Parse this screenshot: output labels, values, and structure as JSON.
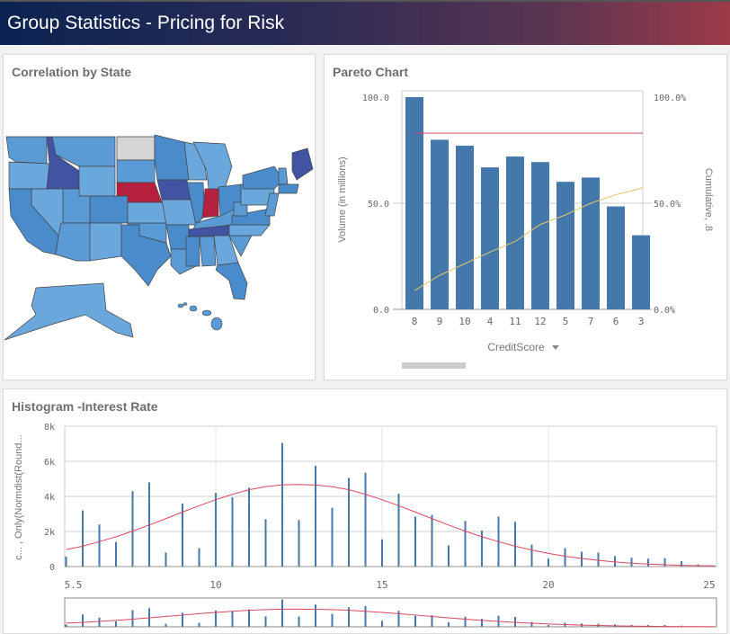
{
  "header": {
    "title": "Group Statistics - Pricing for Risk"
  },
  "map": {
    "title": "Correlation by State",
    "colors": {
      "default": "#5b9bd5",
      "light": "#6aa7dc",
      "mid": "#4a8ccb",
      "dark": "#4353a3",
      "red": "#b5203f",
      "nodata": "#d5d5d5"
    },
    "highlighted": {
      "dark": [
        "ID",
        "IA",
        "TN",
        "ME"
      ],
      "red": [
        "NE",
        "IN"
      ],
      "nodata": [
        "ND"
      ]
    }
  },
  "pareto": {
    "title": "Pareto Chart",
    "left_ticks": [
      "100.0",
      "50.0",
      "0.0"
    ],
    "right_ticks": [
      "100.0%",
      "50.0%",
      "0.0%"
    ],
    "ylabel": "Volume (in millions)",
    "y2label": "Cumulative, .8",
    "xlabel": "CreditScore",
    "dropdown_icon": "triangle-down"
  },
  "histogram": {
    "title": "Histogram -Interest Rate",
    "ylabel": "c... , Only(Normdist(Round...",
    "y_ticks": [
      "8k",
      "6k",
      "4k",
      "2k",
      "0"
    ],
    "x_ticks": [
      "5.5",
      "10",
      "15",
      "20",
      "25"
    ]
  },
  "chart_data": [
    {
      "type": "bar",
      "categories": [
        "8",
        "9",
        "10",
        "4",
        "11",
        "12",
        "5",
        "7",
        "6",
        "3"
      ],
      "values": [
        100,
        79.9,
        77.1,
        66.9,
        72.0,
        69.4,
        60.1,
        62.1,
        48.5,
        34.9
      ],
      "cumulative_pct": [
        8.8,
        16,
        21.5,
        27,
        32,
        40,
        44.5,
        50,
        54,
        57
      ],
      "reference_line_pct": 83,
      "ylim": [
        0,
        100
      ],
      "y2lim": [
        0,
        100
      ],
      "bar_color": "#4477aa",
      "line_color": "#e5c76b",
      "reference_color": "#d9475f"
    },
    {
      "type": "bar",
      "x": [
        5.5,
        6,
        6.5,
        7,
        7.5,
        8,
        8.5,
        9,
        9.5,
        10,
        10.5,
        11,
        11.5,
        12,
        12.5,
        13,
        13.5,
        14,
        14.5,
        15,
        15.5,
        16,
        16.5,
        17,
        17.5,
        18,
        18.5,
        19,
        19.5,
        20,
        20.5,
        21,
        21.5,
        22,
        22.5,
        23,
        23.5,
        24,
        24.5,
        25
      ],
      "values": [
        570,
        3200,
        2400,
        1400,
        4300,
        4800,
        800,
        3600,
        1050,
        4200,
        3950,
        4500,
        2700,
        7050,
        2650,
        5750,
        3350,
        5050,
        5350,
        1550,
        4150,
        2850,
        2950,
        1200,
        2600,
        2050,
        2850,
        2550,
        1250,
        450,
        1050,
        850,
        800,
        600,
        500,
        450,
        480,
        300,
        120,
        50
      ],
      "curve": [
        970,
        1160,
        1420,
        1700,
        2020,
        2370,
        2730,
        3110,
        3470,
        3810,
        4120,
        4380,
        4560,
        4660,
        4680,
        4650,
        4560,
        4380,
        4120,
        3810,
        3470,
        3110,
        2730,
        2370,
        2020,
        1700,
        1420,
        1160,
        940,
        750,
        590,
        460,
        350,
        260,
        190,
        140,
        100,
        70,
        50,
        40
      ],
      "xlim": [
        5.5,
        25
      ],
      "ylim": [
        0,
        8000
      ],
      "grid": true,
      "bar_color": "#4477aa",
      "curve_color": "#d9475f"
    }
  ]
}
